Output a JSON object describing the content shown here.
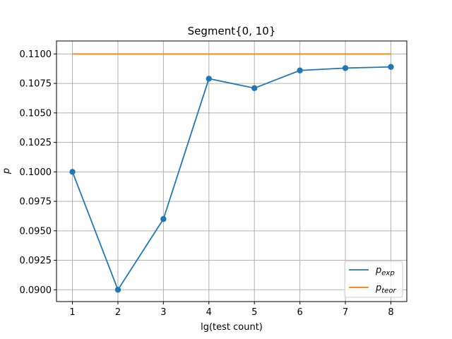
{
  "chart_data": {
    "type": "line",
    "title": "Segment{0, 10}",
    "xlabel": "lg(test count)",
    "ylabel": "p",
    "xlim": [
      0.65,
      8.35
    ],
    "ylim": [
      0.089,
      0.1111
    ],
    "x_ticks": [
      "1",
      "2",
      "3",
      "4",
      "5",
      "6",
      "7",
      "8"
    ],
    "y_ticks": [
      "0.0900",
      "0.0925",
      "0.0950",
      "0.0975",
      "0.1000",
      "0.1025",
      "0.1050",
      "0.1075",
      "0.1100"
    ],
    "grid": true,
    "legend_position": "lower-right",
    "x": [
      1,
      2,
      3,
      4,
      5,
      6,
      7,
      8
    ],
    "series": [
      {
        "name": "exp",
        "legend_main": "p",
        "legend_sub": "exp",
        "color": "#1f77b4",
        "markers": true,
        "values": [
          0.1,
          0.09,
          0.096,
          0.1079,
          0.1071,
          0.1086,
          0.1088,
          0.1089
        ]
      },
      {
        "name": "teor",
        "legend_main": "p",
        "legend_sub": "teor",
        "color": "#ff7f0e",
        "markers": false,
        "values": [
          0.11,
          0.11,
          0.11,
          0.11,
          0.11,
          0.11,
          0.11,
          0.11
        ]
      }
    ]
  }
}
